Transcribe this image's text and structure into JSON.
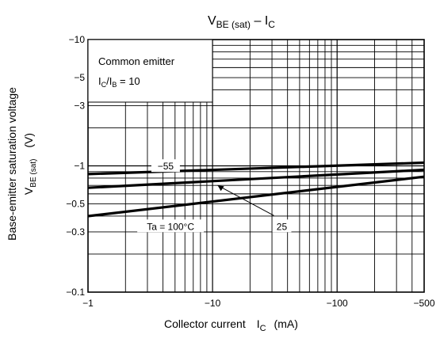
{
  "chart_data": {
    "type": "line",
    "title": {
      "main": "V",
      "sub": "BE (sat)",
      "dash": " – ",
      "i": "I",
      "isub": "C"
    },
    "xlabel": {
      "text": "Collector current",
      "sym": "I",
      "sub": "C",
      "unit": "(mA)"
    },
    "ylabel": {
      "line1": "Base-emitter saturation voltage",
      "sym": "V",
      "sub": "BE (sat)",
      "unit": "(V)"
    },
    "x_scale": "log",
    "y_scale": "log",
    "xlim": [
      -1,
      -500
    ],
    "ylim": [
      -0.1,
      -10
    ],
    "x_ticks": [
      {
        "value": -1,
        "label": "−1"
      },
      {
        "value": -10,
        "label": "−10"
      },
      {
        "value": -100,
        "label": "−100"
      },
      {
        "value": -500,
        "label": "−500"
      }
    ],
    "y_ticks": [
      {
        "value": -0.1,
        "label": "−0.1"
      },
      {
        "value": -0.3,
        "label": "−0.3"
      },
      {
        "value": -0.5,
        "label": "−0.5"
      },
      {
        "value": -1,
        "label": "−1"
      },
      {
        "value": -3,
        "label": "−3"
      },
      {
        "value": -5,
        "label": "−5"
      },
      {
        "value": -10,
        "label": "−10"
      }
    ],
    "grid": true,
    "legend_box": {
      "line1": "Common emitter",
      "line2_sym": "I",
      "line2_sub1": "C",
      "line2_mid": "/I",
      "line2_sub2": "B",
      "line2_tail": " = 10"
    },
    "series": [
      {
        "name": "−55",
        "x": [
          -1,
          -500
        ],
        "y": [
          -0.86,
          -1.06
        ]
      },
      {
        "name": "25",
        "x": [
          -1,
          -500
        ],
        "y": [
          -0.67,
          -0.93
        ]
      },
      {
        "name": "Ta = 100°C",
        "x": [
          -1,
          -500
        ],
        "y": [
          -0.4,
          -0.82
        ]
      }
    ],
    "annotations": [
      {
        "text": "−55",
        "series": 0
      },
      {
        "text": "25",
        "series": 1
      },
      {
        "text": "Ta = 100°C",
        "series": 2
      }
    ]
  }
}
